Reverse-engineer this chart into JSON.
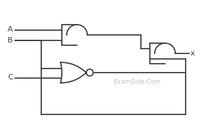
{
  "bg_color": "#ffffff",
  "line_color": "#404040",
  "text_color": "#404040",
  "label_A": "A",
  "label_B": "B",
  "label_C": "C",
  "label_x": "x",
  "watermark": "ExamSide.Com",
  "watermark_color": "#c0c0c0",
  "fig_width": 3.2,
  "fig_height": 1.81,
  "dpi": 100
}
